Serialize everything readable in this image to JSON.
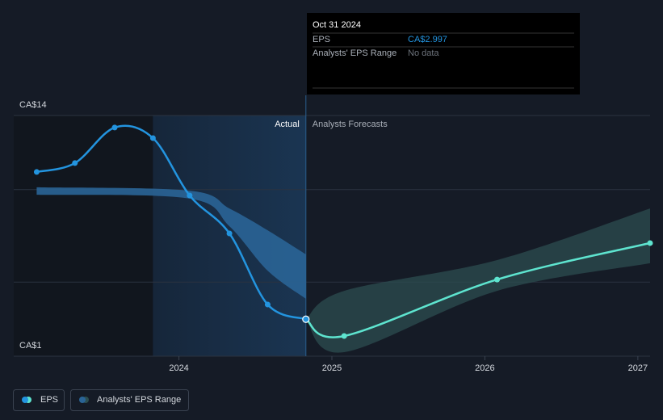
{
  "chart_data": {
    "type": "line",
    "xlim": [
      2022.92,
      2027.08
    ],
    "xticks": [
      2024,
      2025,
      2026,
      2027
    ],
    "ylim": [
      1,
      14
    ],
    "yticks": [
      {
        "value": 1,
        "label": "CA$1"
      },
      {
        "value": 14,
        "label": "CA$14"
      }
    ],
    "ygrid": [
      5,
      10
    ],
    "annotations": {
      "actual": "Actual",
      "forecast": "Analysts Forecasts"
    },
    "series": [
      {
        "name": "EPS",
        "color": "#2394df",
        "x": [
          2023.07,
          2023.32,
          2023.58,
          2023.83,
          2024.07,
          2024.33,
          2024.58,
          2024.83
        ],
        "values": [
          10.95,
          11.43,
          13.35,
          12.78,
          9.68,
          7.63,
          3.79,
          2.997
        ]
      },
      {
        "name": "Analysts' EPS Range",
        "color": "#2a6496",
        "x": [
          2023.07,
          2024.07,
          2024.33,
          2024.58,
          2024.83
        ],
        "low": [
          9.72,
          9.51,
          8.02,
          5.62,
          4.1
        ],
        "high": [
          10.12,
          9.94,
          8.98,
          7.8,
          6.5
        ]
      }
    ],
    "forecast": {
      "color": "#5ee4cf",
      "x": [
        2024.83,
        2025.08,
        2026.08,
        2027.08
      ],
      "values": [
        2.997,
        2.09,
        5.14,
        7.11
      ]
    },
    "forecast_range": {
      "color": "#2c4e50",
      "x": [
        2024.83,
        2025.08,
        2026.08,
        2027.08
      ],
      "low": [
        2.997,
        1.22,
        4.53,
        6.02
      ],
      "high": [
        2.997,
        4.53,
        6.19,
        8.98
      ]
    },
    "tooltip": {
      "date": "Oct 31 2024",
      "rows": [
        {
          "label": "EPS",
          "value": "CA$2.997"
        },
        {
          "label": "Analysts' EPS Range",
          "value": "No data"
        }
      ]
    }
  }
}
